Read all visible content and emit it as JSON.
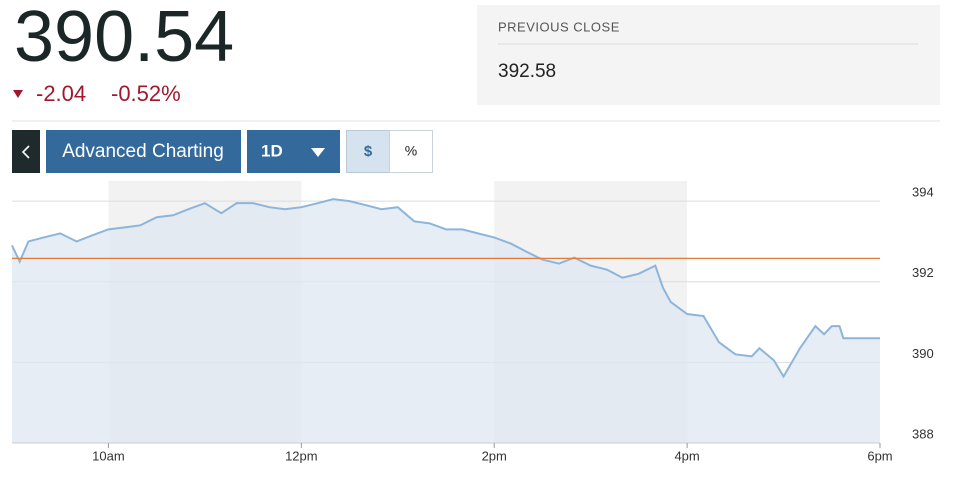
{
  "header": {
    "price": 390.54,
    "change": -2.04,
    "change_pct": "-0.52%"
  },
  "previous_close": {
    "label": "PREVIOUS CLOSE",
    "value": 392.58
  },
  "toolbar": {
    "advanced": "Advanced Charting",
    "range": "1D",
    "dollar": "$",
    "percent": "%"
  },
  "chart_data": {
    "type": "line",
    "x": [
      9.0,
      9.08,
      9.17,
      9.33,
      9.5,
      9.67,
      9.83,
      10.0,
      10.17,
      10.33,
      10.5,
      10.67,
      10.83,
      11.0,
      11.17,
      11.33,
      11.5,
      11.67,
      11.83,
      12.0,
      12.17,
      12.33,
      12.5,
      12.67,
      12.83,
      13.0,
      13.17,
      13.33,
      13.5,
      13.67,
      13.83,
      14.0,
      14.17,
      14.33,
      14.5,
      14.67,
      14.83,
      15.0,
      15.17,
      15.33,
      15.5,
      15.67,
      15.75,
      15.83,
      16.0,
      16.17,
      16.33,
      16.5,
      16.67,
      16.75,
      16.9,
      17.0,
      17.17,
      17.33,
      17.42,
      17.5,
      17.58,
      17.62,
      18.0
    ],
    "series": [
      {
        "color": "#8db5da",
        "values": [
          392.9,
          392.5,
          393.0,
          393.1,
          393.2,
          393.0,
          393.15,
          393.3,
          393.35,
          393.4,
          393.6,
          393.65,
          393.8,
          393.95,
          393.7,
          393.95,
          393.95,
          393.85,
          393.8,
          393.85,
          393.95,
          394.05,
          394.0,
          393.9,
          393.8,
          393.85,
          393.5,
          393.45,
          393.3,
          393.3,
          393.2,
          393.1,
          392.95,
          392.75,
          392.55,
          392.45,
          392.6,
          392.4,
          392.3,
          392.1,
          392.2,
          392.4,
          391.85,
          391.5,
          391.2,
          391.15,
          390.5,
          390.2,
          390.15,
          390.35,
          390.05,
          389.65,
          390.35,
          390.9,
          390.7,
          390.9,
          390.9,
          390.6,
          390.6
        ]
      }
    ],
    "xlim": [
      9,
      18
    ],
    "xticks": [
      {
        "value": 10,
        "label": "10am"
      },
      {
        "value": 12,
        "label": "12pm"
      },
      {
        "value": 14,
        "label": "2pm"
      },
      {
        "value": 16,
        "label": "4pm"
      },
      {
        "value": 18,
        "label": "6pm"
      }
    ],
    "ylim": [
      388,
      394.5
    ],
    "yticks": [
      388,
      390,
      392,
      394
    ],
    "grid": true,
    "reference_color": "#e07b3c",
    "fill_color": "#dde7f1"
  }
}
